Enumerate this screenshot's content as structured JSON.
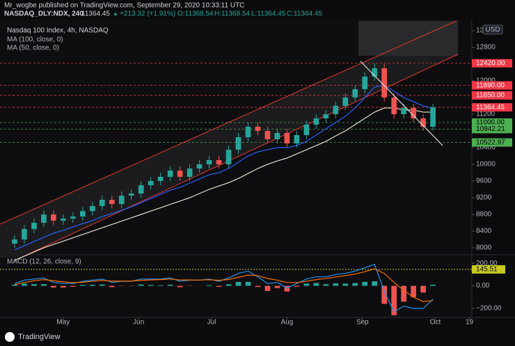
{
  "header": {
    "byline": "Mr_wogbe published on TradingView.com, September 29, 2020 10:33:11 UTC",
    "symbol": "NASDAQ_DLY:NDX, 240",
    "last": "11364.45",
    "arrow": "▲",
    "change": "+213.32 (+1.91%)",
    "open": "O:11368.54",
    "high": "H:11368.54",
    "low": "L:11364.45",
    "close": "C:11364.45"
  },
  "footer": {
    "brand": "TradingView"
  },
  "chart_data": {
    "type": "candlestick",
    "title": "Nasdaq 100 Index, 4h, NASDAQ",
    "currency": "USD",
    "xlim": [
      4,
      198
    ],
    "xticks": [
      {
        "value": 30,
        "label": "May"
      },
      {
        "value": 61,
        "label": "Jun"
      },
      {
        "value": 91,
        "label": "Jul"
      },
      {
        "value": 122,
        "label": "Aug"
      },
      {
        "value": 153,
        "label": "Sep"
      },
      {
        "value": 183,
        "label": "Oct"
      },
      {
        "value": 197,
        "label": "19"
      }
    ],
    "ylim": [
      7833,
      13468
    ],
    "yticks": [
      8000,
      8400,
      8800,
      9200,
      9600,
      10000,
      10400,
      10800,
      11200,
      11600,
      12000,
      12400,
      12800,
      13200
    ],
    "up_color": "#26a69a",
    "down_color": "#ef5350",
    "candles": {
      "x": [
        10,
        14,
        18,
        22,
        26,
        30,
        34,
        38,
        42,
        46,
        50,
        54,
        58,
        62,
        66,
        70,
        74,
        78,
        82,
        86,
        90,
        94,
        98,
        102,
        106,
        110,
        114,
        118,
        122,
        126,
        130,
        134,
        138,
        142,
        146,
        150,
        154,
        158,
        162,
        166,
        170,
        174,
        178,
        182
      ],
      "open": [
        8100,
        8200,
        8450,
        8600,
        8800,
        8650,
        8700,
        8750,
        8880,
        9000,
        9150,
        9050,
        9250,
        9300,
        9500,
        9600,
        9700,
        9850,
        9700,
        9900,
        10000,
        10100,
        10000,
        10350,
        10650,
        10900,
        10800,
        10600,
        10750,
        10500,
        10700,
        10950,
        11100,
        11200,
        11400,
        11600,
        11800,
        12100,
        12300,
        11600,
        11200,
        11350,
        11100,
        10900
      ],
      "high": [
        8300,
        8550,
        8700,
        8900,
        8900,
        8800,
        8850,
        8980,
        9100,
        9250,
        9250,
        9350,
        9400,
        9600,
        9700,
        9800,
        9950,
        9950,
        10000,
        10100,
        10200,
        10200,
        10450,
        10750,
        11000,
        11000,
        10900,
        10850,
        10850,
        10800,
        11050,
        11200,
        11300,
        11500,
        11700,
        11900,
        12200,
        12420,
        12400,
        11700,
        11450,
        11450,
        11200,
        11450
      ],
      "low": [
        8000,
        8100,
        8350,
        8500,
        8550,
        8550,
        8600,
        8650,
        8780,
        8900,
        8950,
        8950,
        9150,
        9200,
        9400,
        9500,
        9600,
        9600,
        9600,
        9800,
        9900,
        9900,
        9900,
        10250,
        10550,
        10700,
        10500,
        10500,
        10400,
        10400,
        10600,
        10850,
        11000,
        11100,
        11300,
        11500,
        11700,
        12000,
        11500,
        11100,
        11100,
        11000,
        10800,
        10800
      ],
      "close": [
        8200,
        8450,
        8600,
        8800,
        8650,
        8700,
        8750,
        8880,
        9000,
        9150,
        9050,
        9250,
        9300,
        9500,
        9600,
        9700,
        9850,
        9700,
        9900,
        10000,
        10100,
        10000,
        10350,
        10650,
        10900,
        10800,
        10600,
        10750,
        10500,
        10700,
        10950,
        11100,
        11200,
        11400,
        11600,
        11800,
        12100,
        12300,
        11600,
        11200,
        11350,
        11100,
        10900,
        11364.45
      ]
    },
    "series": [
      {
        "name": "MA (100, close, 0)",
        "color": "#e8e0d0",
        "values": [
          7700,
          7800,
          7900,
          8000,
          8080,
          8160,
          8240,
          8320,
          8400,
          8480,
          8560,
          8640,
          8720,
          8800,
          8880,
          8960,
          9040,
          9120,
          9200,
          9300,
          9400,
          9480,
          9560,
          9660,
          9780,
          9900,
          10000,
          10080,
          10150,
          10250,
          10350,
          10450,
          10550,
          10680,
          10800,
          10950,
          11100,
          11250,
          11350,
          11350,
          11300,
          11300,
          11250,
          11250
        ]
      },
      {
        "name": "MA (50, close, 0)",
        "color": "#2962ff",
        "values": [
          7950,
          8050,
          8150,
          8250,
          8350,
          8420,
          8500,
          8580,
          8650,
          8750,
          8820,
          8900,
          8980,
          9080,
          9180,
          9280,
          9380,
          9450,
          9550,
          9650,
          9750,
          9800,
          9900,
          10050,
          10200,
          10300,
          10350,
          10400,
          10400,
          10450,
          10550,
          10700,
          10850,
          11000,
          11150,
          11350,
          11600,
          11850,
          11900,
          11750,
          11600,
          11500,
          11400,
          11350
        ]
      }
    ],
    "levels": [
      {
        "price": {
          "value": 12420,
          "label": "12420.00"
        },
        "color": "#f23645"
      },
      {
        "price": {
          "value": 11890,
          "label": "11890.00"
        },
        "color": "#f23645"
      },
      {
        "price": {
          "value": 11650,
          "label": "11650.00"
        },
        "color": "#f23645"
      },
      {
        "price": 11364.45,
        "color": "#f23645"
      },
      {
        "price": {
          "value": 11000,
          "label": "11000.00"
        },
        "color": "#4caf50"
      },
      {
        "price": 10842.21,
        "color": "#4caf50"
      },
      {
        "price": 10522.97,
        "color": "#4caf50"
      }
    ],
    "macd": {
      "title": "MACD (12, 26, close, 9)",
      "ylim": [
        -280,
        250
      ],
      "yticks": [
        {
          "value": 200,
          "label": "200.00"
        },
        {
          "value": 0,
          "label": "0.00"
        },
        {
          "value": -200,
          "label": "−200.00"
        }
      ],
      "level": 145.51,
      "level_color": "#c8c820",
      "macd_line": {
        "color": "#2196f3",
        "values": [
          20,
          50,
          60,
          70,
          30,
          20,
          20,
          40,
          50,
          60,
          30,
          40,
          40,
          60,
          60,
          60,
          70,
          40,
          50,
          50,
          60,
          40,
          70,
          110,
          130,
          80,
          20,
          30,
          -20,
          20,
          60,
          80,
          80,
          100,
          110,
          130,
          160,
          190,
          -50,
          -230,
          -180,
          -200,
          -200,
          -120
        ]
      },
      "signal_line": {
        "color": "#ff6d00",
        "values": [
          10,
          30,
          45,
          55,
          45,
          35,
          28,
          32,
          40,
          48,
          42,
          42,
          42,
          48,
          52,
          55,
          60,
          52,
          52,
          51,
          54,
          49,
          56,
          75,
          95,
          90,
          65,
          50,
          30,
          28,
          40,
          55,
          65,
          78,
          90,
          105,
          125,
          150,
          110,
          30,
          -40,
          -100,
          -140,
          -130
        ]
      },
      "histogram": {
        "up_color": "#26a69a",
        "down_color": "#ef5350",
        "values": [
          10,
          20,
          15,
          15,
          -15,
          -15,
          -8,
          8,
          10,
          12,
          -12,
          -2,
          -2,
          12,
          8,
          5,
          10,
          -12,
          -2,
          -1,
          6,
          -9,
          14,
          35,
          35,
          -10,
          -45,
          -20,
          -50,
          -8,
          20,
          25,
          15,
          22,
          20,
          25,
          35,
          40,
          -160,
          -260,
          -140,
          -100,
          -60,
          10
        ]
      }
    }
  }
}
